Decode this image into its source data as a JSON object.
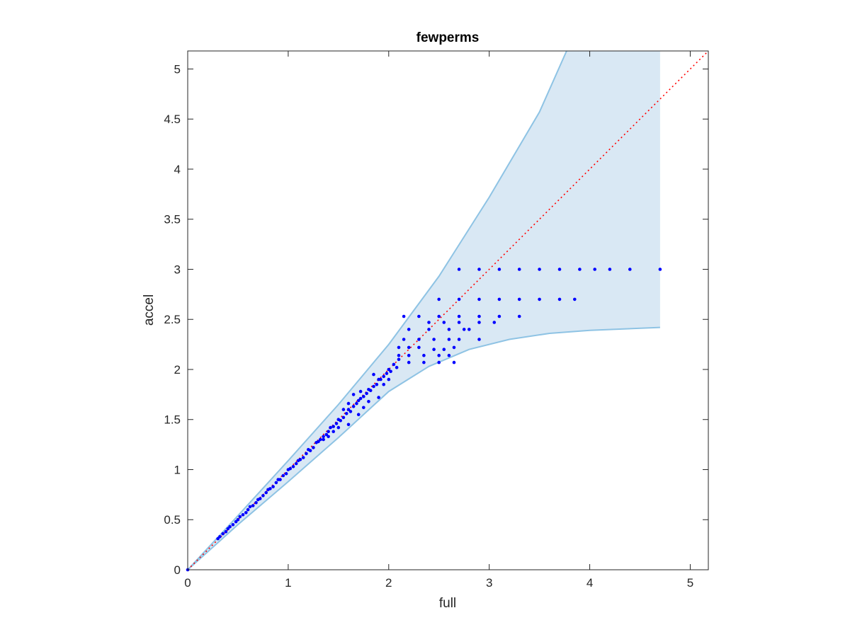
{
  "chart_data": {
    "type": "scatter",
    "title": "fewperms",
    "xlabel": "full",
    "ylabel": "accel",
    "xlim": [
      0,
      5.18
    ],
    "ylim": [
      0,
      5.18
    ],
    "xticks": [
      0,
      1,
      2,
      3,
      4,
      5
    ],
    "xtick_labels": [
      "0",
      "1",
      "2",
      "3",
      "4",
      "5"
    ],
    "yticks": [
      0,
      0.5,
      1,
      1.5,
      2,
      2.5,
      3,
      3.5,
      4,
      4.5,
      5
    ],
    "ytick_labels": [
      "0",
      "0.5",
      "1",
      "1.5",
      "2",
      "2.5",
      "3",
      "3.5",
      "4",
      "4.5",
      "5"
    ],
    "grid": false,
    "colors": {
      "points": "#0000ff",
      "band_fill": "#d9e8f4",
      "band_edge": "#8ec3e4",
      "reference_line": "#ff0000",
      "axes": "#262626"
    },
    "reference_line": {
      "style": "dotted",
      "points": [
        [
          0,
          0
        ],
        [
          5.18,
          5.18
        ]
      ]
    },
    "band": {
      "upper": [
        [
          0,
          0
        ],
        [
          0.5,
          0.54
        ],
        [
          1,
          1.09
        ],
        [
          1.5,
          1.65
        ],
        [
          2,
          2.25
        ],
        [
          2.5,
          2.93
        ],
        [
          3,
          3.72
        ],
        [
          3.5,
          4.57
        ],
        [
          3.77,
          5.18
        ],
        [
          4.7,
          5.18
        ]
      ],
      "lower": [
        [
          0,
          0
        ],
        [
          0.5,
          0.45
        ],
        [
          1,
          0.88
        ],
        [
          1.5,
          1.32
        ],
        [
          2,
          1.78
        ],
        [
          2.4,
          2.03
        ],
        [
          2.8,
          2.2
        ],
        [
          3.2,
          2.3
        ],
        [
          3.6,
          2.36
        ],
        [
          4,
          2.39
        ],
        [
          4.7,
          2.42
        ]
      ]
    },
    "series": [
      {
        "points": [
          [
            0,
            0
          ],
          [
            0.3,
            0.31
          ],
          [
            0.32,
            0.33
          ],
          [
            0.35,
            0.36
          ],
          [
            0.38,
            0.38
          ],
          [
            0.4,
            0.41
          ],
          [
            0.42,
            0.43
          ],
          [
            0.45,
            0.45
          ],
          [
            0.48,
            0.48
          ],
          [
            0.5,
            0.5
          ],
          [
            0.52,
            0.53
          ],
          [
            0.55,
            0.55
          ],
          [
            0.58,
            0.57
          ],
          [
            0.6,
            0.6
          ],
          [
            0.62,
            0.63
          ],
          [
            0.65,
            0.64
          ],
          [
            0.68,
            0.67
          ],
          [
            0.7,
            0.7
          ],
          [
            0.72,
            0.71
          ],
          [
            0.75,
            0.74
          ],
          [
            0.78,
            0.77
          ],
          [
            0.8,
            0.8
          ],
          [
            0.82,
            0.81
          ],
          [
            0.85,
            0.83
          ],
          [
            0.88,
            0.87
          ],
          [
            0.9,
            0.9
          ],
          [
            0.92,
            0.9
          ],
          [
            0.95,
            0.94
          ],
          [
            0.98,
            0.96
          ],
          [
            1.0,
            1.0
          ],
          [
            1.02,
            1.01
          ],
          [
            1.05,
            1.03
          ],
          [
            1.08,
            1.06
          ],
          [
            1.1,
            1.09
          ],
          [
            1.12,
            1.1
          ],
          [
            1.15,
            1.12
          ],
          [
            1.18,
            1.16
          ],
          [
            1.2,
            1.2
          ],
          [
            1.22,
            1.19
          ],
          [
            1.25,
            1.22
          ],
          [
            1.28,
            1.27
          ],
          [
            1.3,
            1.28
          ],
          [
            1.32,
            1.3
          ],
          [
            1.35,
            1.33
          ],
          [
            1.38,
            1.35
          ],
          [
            1.4,
            1.38
          ],
          [
            1.42,
            1.42
          ],
          [
            1.45,
            1.43
          ],
          [
            1.48,
            1.46
          ],
          [
            1.5,
            1.5
          ],
          [
            1.52,
            1.49
          ],
          [
            1.55,
            1.52
          ],
          [
            1.58,
            1.56
          ],
          [
            1.6,
            1.6
          ],
          [
            1.62,
            1.58
          ],
          [
            1.65,
            1.63
          ],
          [
            1.68,
            1.66
          ],
          [
            1.7,
            1.69
          ],
          [
            1.72,
            1.71
          ],
          [
            1.75,
            1.73
          ],
          [
            1.78,
            1.76
          ],
          [
            1.8,
            1.8
          ],
          [
            1.82,
            1.79
          ],
          [
            1.85,
            1.83
          ],
          [
            1.88,
            1.85
          ],
          [
            1.9,
            1.9
          ],
          [
            1.92,
            1.9
          ],
          [
            1.95,
            1.93
          ],
          [
            1.98,
            1.96
          ],
          [
            2.0,
            2.0
          ],
          [
            2.02,
            1.98
          ],
          [
            2.05,
            2.05
          ],
          [
            2.08,
            2.02
          ],
          [
            2.1,
            2.1
          ],
          [
            1.6,
            1.45
          ],
          [
            1.7,
            1.55
          ],
          [
            1.75,
            1.62
          ],
          [
            1.8,
            1.68
          ],
          [
            1.65,
            1.75
          ],
          [
            1.72,
            1.78
          ],
          [
            1.85,
            1.95
          ],
          [
            1.9,
            1.72
          ],
          [
            1.95,
            1.85
          ],
          [
            2.0,
            1.9
          ],
          [
            1.55,
            1.6
          ],
          [
            1.6,
            1.66
          ],
          [
            1.5,
            1.42
          ],
          [
            1.45,
            1.38
          ],
          [
            1.4,
            1.33
          ],
          [
            1.35,
            1.3
          ],
          [
            2.1,
            2.22
          ],
          [
            2.2,
            2.22
          ],
          [
            2.3,
            2.22
          ],
          [
            2.15,
            2.3
          ],
          [
            2.3,
            2.3
          ],
          [
            2.45,
            2.3
          ],
          [
            2.2,
            2.4
          ],
          [
            2.4,
            2.4
          ],
          [
            2.6,
            2.4
          ],
          [
            2.8,
            2.4
          ],
          [
            2.15,
            2.53
          ],
          [
            2.3,
            2.53
          ],
          [
            2.5,
            2.53
          ],
          [
            2.7,
            2.53
          ],
          [
            2.9,
            2.53
          ],
          [
            3.1,
            2.53
          ],
          [
            3.3,
            2.53
          ],
          [
            2.5,
            2.7
          ],
          [
            2.7,
            2.7
          ],
          [
            2.9,
            2.7
          ],
          [
            3.1,
            2.7
          ],
          [
            3.3,
            2.7
          ],
          [
            3.5,
            2.7
          ],
          [
            3.7,
            2.7
          ],
          [
            3.85,
            2.7
          ],
          [
            2.7,
            3.0
          ],
          [
            2.9,
            3.0
          ],
          [
            3.1,
            3.0
          ],
          [
            3.3,
            3.0
          ],
          [
            3.5,
            3.0
          ],
          [
            3.7,
            3.0
          ],
          [
            3.9,
            3.0
          ],
          [
            4.05,
            3.0
          ],
          [
            4.2,
            3.0
          ],
          [
            4.4,
            3.0
          ],
          [
            4.7,
            3.0
          ],
          [
            2.1,
            2.14
          ],
          [
            2.2,
            2.14
          ],
          [
            2.35,
            2.14
          ],
          [
            2.5,
            2.14
          ],
          [
            2.6,
            2.14
          ],
          [
            2.2,
            2.07
          ],
          [
            2.35,
            2.07
          ],
          [
            2.5,
            2.07
          ],
          [
            2.65,
            2.07
          ],
          [
            2.4,
            2.47
          ],
          [
            2.55,
            2.47
          ],
          [
            2.7,
            2.47
          ],
          [
            2.9,
            2.47
          ],
          [
            3.05,
            2.47
          ],
          [
            2.6,
            2.3
          ],
          [
            2.7,
            2.3
          ],
          [
            2.75,
            2.4
          ],
          [
            2.9,
            2.3
          ],
          [
            2.45,
            2.2
          ],
          [
            2.55,
            2.2
          ],
          [
            2.65,
            2.22
          ]
        ]
      }
    ]
  }
}
